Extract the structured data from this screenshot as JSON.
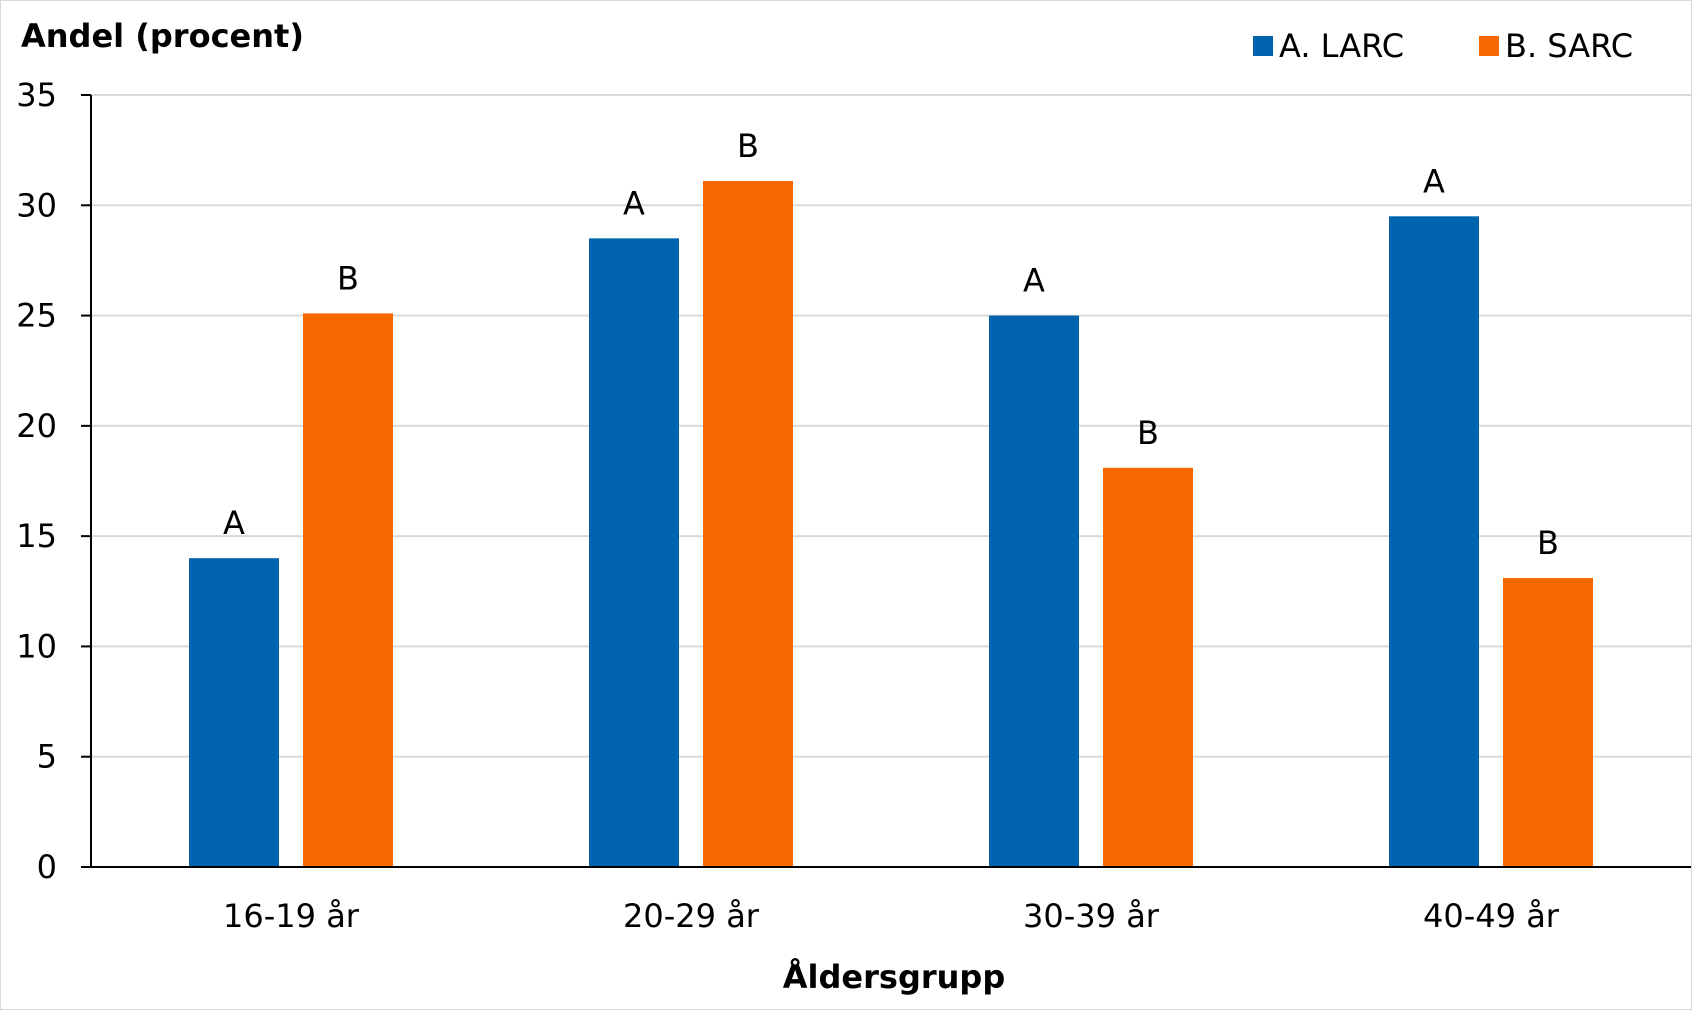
{
  "chart_data": {
    "type": "bar",
    "ylabel": "Andel (procent)",
    "xlabel": "Åldersgrupp",
    "categories": [
      "16-19 år",
      "20-29 år",
      "30-39 år",
      "40-49 år"
    ],
    "ylim": [
      0,
      35
    ],
    "yticks": [
      0,
      5,
      10,
      15,
      20,
      25,
      30,
      35
    ],
    "grid": true,
    "legend_position": "top-right",
    "series": [
      {
        "name": "A. LARC",
        "color": "#0063ad",
        "bar_label": "A",
        "values": [
          14.0,
          28.5,
          25.0,
          29.5
        ]
      },
      {
        "name": "B. SARC",
        "color": "#f96800",
        "bar_label": "B",
        "values": [
          25.1,
          31.1,
          18.1,
          13.1
        ]
      }
    ]
  }
}
